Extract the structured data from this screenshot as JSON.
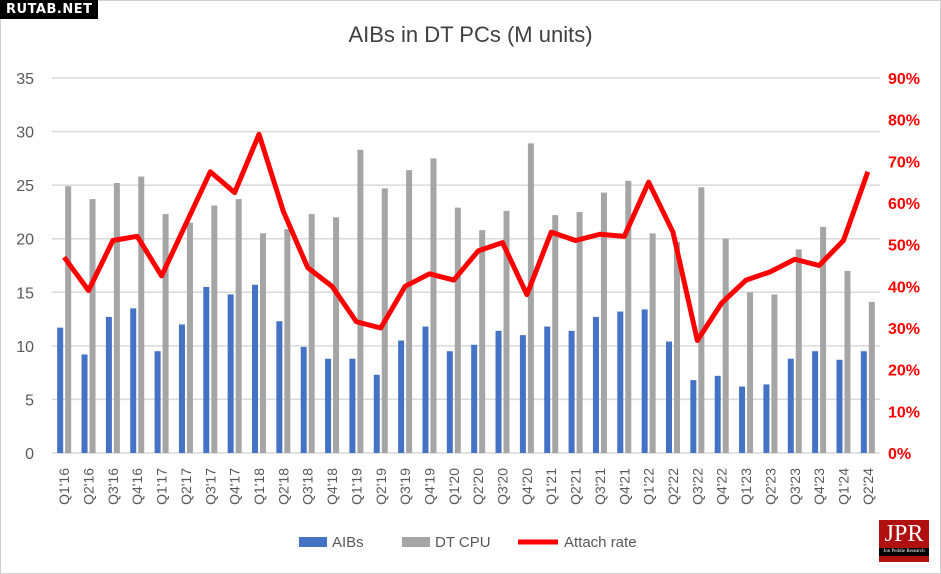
{
  "watermark": "RUTAB.NET",
  "logo": {
    "text": "JPR",
    "subtext": "Jon Peddie Research"
  },
  "chart_data": {
    "type": "bar",
    "title": "AIBs in DT PCs (M units)",
    "categories": [
      "Q1'16",
      "Q2'16",
      "Q3'16",
      "Q4'16",
      "Q1'17",
      "Q2'17",
      "Q3'17",
      "Q4'17",
      "Q1'18",
      "Q2'18",
      "Q3'18",
      "Q4'18",
      "Q1'19",
      "Q2'19",
      "Q3'19",
      "Q4'19",
      "Q1'20",
      "Q2'20",
      "Q3'20",
      "Q4'20",
      "Q1'21",
      "Q2'21",
      "Q3'21",
      "Q4'21",
      "Q1'22",
      "Q2'22",
      "Q3'22",
      "Q4'22",
      "Q1'23",
      "Q2'23",
      "Q3'23",
      "Q4'23",
      "Q1'24",
      "Q2'24"
    ],
    "series": [
      {
        "name": "AIBs",
        "type": "bar",
        "axis": "left",
        "color": "#4472c4",
        "values": [
          11.7,
          9.2,
          12.7,
          13.5,
          9.5,
          12.0,
          15.5,
          14.8,
          15.7,
          12.3,
          9.9,
          8.8,
          8.8,
          7.3,
          10.5,
          11.8,
          9.5,
          10.1,
          11.4,
          11.0,
          11.8,
          11.4,
          12.7,
          13.2,
          13.4,
          10.4,
          6.8,
          7.2,
          6.2,
          6.4,
          8.8,
          9.5,
          8.7,
          9.5
        ]
      },
      {
        "name": "DT CPU",
        "type": "bar",
        "axis": "left",
        "color": "#a5a5a5",
        "values": [
          24.9,
          23.7,
          25.2,
          25.8,
          22.3,
          21.5,
          23.1,
          23.7,
          20.5,
          20.9,
          22.3,
          22.0,
          28.3,
          24.7,
          26.4,
          27.5,
          22.9,
          20.8,
          22.6,
          28.9,
          22.2,
          22.5,
          24.3,
          25.4,
          20.5,
          19.7,
          24.8,
          20.0,
          15.0,
          14.8,
          19.0,
          21.1,
          17.0,
          14.1
        ]
      },
      {
        "name": "Attach rate",
        "type": "line",
        "axis": "right",
        "color": "#ff0000",
        "values": [
          47,
          39,
          51,
          52,
          42.5,
          55,
          67.5,
          62.5,
          76.5,
          58,
          44.5,
          40,
          31.5,
          30,
          40,
          43,
          41.5,
          48.5,
          50.5,
          38,
          53,
          51,
          52.5,
          52,
          65,
          53,
          27,
          36,
          41.5,
          43.5,
          46.5,
          45,
          51,
          67.5
        ]
      }
    ],
    "y_left": {
      "min": 0,
      "max": 35,
      "ticks": [
        "0",
        "5",
        "10",
        "15",
        "20",
        "25",
        "30",
        "35"
      ]
    },
    "y_right": {
      "min": 0,
      "max": 90,
      "ticks": [
        "0%",
        "10%",
        "20%",
        "30%",
        "40%",
        "50%",
        "60%",
        "70%",
        "80%",
        "90%"
      ]
    },
    "grid": true,
    "legend": "bottom"
  }
}
